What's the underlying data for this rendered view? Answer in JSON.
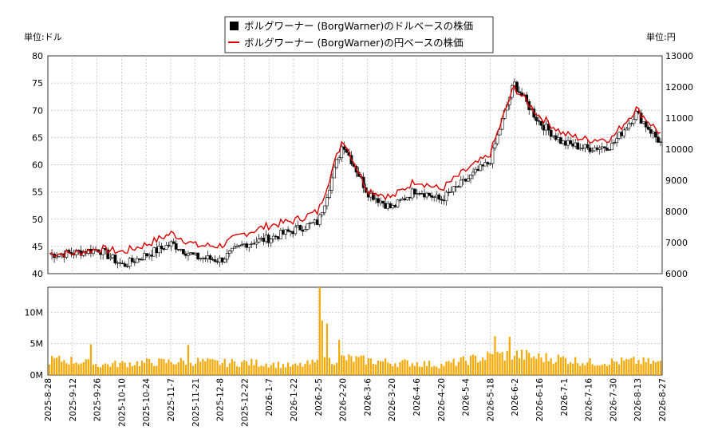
{
  "chart_data": [
    {
      "type": "candlestick",
      "legend": {
        "placement": "top-center",
        "entries": [
          {
            "label": "ボルグワーナー (BorgWarner)のドルベースの株価",
            "color": "#000000",
            "marker": "square"
          },
          {
            "label": "ボルグワーナー (BorgWarner)の円ベースの株価",
            "color": "#dd0000",
            "marker": "line"
          }
        ]
      },
      "y_left": {
        "unit_label": "単位:ドル",
        "ylim": [
          40,
          80
        ],
        "ticks": [
          40,
          45,
          50,
          55,
          60,
          65,
          70,
          75,
          80
        ]
      },
      "y_right": {
        "unit_label": "単位:円",
        "ylim": [
          6000,
          13000
        ],
        "ticks": [
          6000,
          7000,
          8000,
          9000,
          10000,
          11000,
          12000,
          13000
        ]
      },
      "grid": true,
      "x_dates": [
        "2025-8-28",
        "2025-9-12",
        "2025-9-26",
        "2025-10-10",
        "2025-10-24",
        "2025-11-7",
        "2025-11-21",
        "2025-12-8",
        "2025-12-22",
        "2026-1-7",
        "2026-1-22",
        "2026-2-5",
        "2026-2-20",
        "2026-3-6",
        "2026-3-20",
        "2026-4-6",
        "2026-4-20",
        "2026-5-4",
        "2026-5-18",
        "2026-6-2",
        "2026-6-16",
        "2026-7-1",
        "2026-7-16",
        "2026-7-30",
        "2026-8-13",
        "2026-8-27"
      ],
      "price_anchors_usd": [
        43.5,
        43.8,
        44.5,
        41.5,
        43.5,
        45.5,
        43.0,
        42.5,
        45.5,
        46.5,
        48.0,
        49.5,
        64.0,
        55.0,
        52.0,
        55.5,
        53.5,
        57.0,
        60.5,
        75.0,
        68.0,
        64.0,
        63.0,
        63.5,
        69.5,
        64.0
      ],
      "price_anchors_jpy": [
        6650,
        6650,
        6800,
        6700,
        6950,
        7300,
        6900,
        6900,
        7300,
        7550,
        7700,
        8000,
        10350,
        8700,
        8450,
        9000,
        8700,
        9300,
        9800,
        12000,
        11100,
        10500,
        10300,
        10350,
        11300,
        10500
      ],
      "volume_axis": {
        "ticks": [
          "0M",
          "5M",
          "10M"
        ],
        "ylim": [
          0,
          14
        ]
      },
      "volume_anchors_m": [
        2.4,
        2.3,
        1.6,
        1.8,
        2.0,
        2.1,
        2.2,
        1.9,
        2.0,
        1.8,
        1.4,
        2.0,
        2.7,
        2.3,
        2.0,
        1.9,
        1.6,
        2.3,
        3.0,
        3.3,
        2.8,
        2.6,
        2.0,
        2.1,
        2.2,
        1.9
      ],
      "volume_spikes_m": [
        {
          "date": "2025-9-22",
          "value": 4.9
        },
        {
          "date": "2025-11-19",
          "value": 4.8
        },
        {
          "date": "2026-2-5",
          "value": 14.0
        },
        {
          "date": "2026-2-6",
          "value": 8.7
        },
        {
          "date": "2026-2-9",
          "value": 8.2
        },
        {
          "date": "2026-2-17",
          "value": 5.6
        },
        {
          "date": "2026-5-20",
          "value": 6.2
        },
        {
          "date": "2026-5-29",
          "value": 6.1
        }
      ]
    }
  ]
}
